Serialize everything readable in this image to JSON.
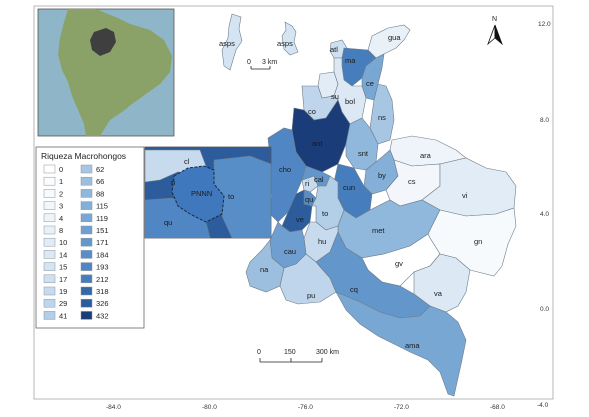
{
  "map": {
    "legend": {
      "title": "Riqueza Macrohongos",
      "items": [
        {
          "label": "0",
          "color": "#ffffff"
        },
        {
          "label": "1",
          "color": "#fbfcfe"
        },
        {
          "label": "2",
          "color": "#f7fafd"
        },
        {
          "label": "3",
          "color": "#f3f7fc"
        },
        {
          "label": "4",
          "color": "#eef4fa"
        },
        {
          "label": "8",
          "color": "#e8f0f8"
        },
        {
          "label": "10",
          "color": "#e2ecf6"
        },
        {
          "label": "14",
          "color": "#dce8f4"
        },
        {
          "label": "15",
          "color": "#d5e4f2"
        },
        {
          "label": "17",
          "color": "#cfe0f0"
        },
        {
          "label": "19",
          "color": "#c8dbee"
        },
        {
          "label": "29",
          "color": "#bed5eb"
        },
        {
          "label": "41",
          "color": "#b3cee7"
        },
        {
          "label": "62",
          "color": "#a7c6e3"
        },
        {
          "label": "66",
          "color": "#9cbfe0"
        },
        {
          "label": "88",
          "color": "#90b7dc"
        },
        {
          "label": "115",
          "color": "#84afd8"
        },
        {
          "label": "119",
          "color": "#79a7d4"
        },
        {
          "label": "151",
          "color": "#6e9fd0"
        },
        {
          "label": "171",
          "color": "#6397cc"
        },
        {
          "label": "184",
          "color": "#588ec8"
        },
        {
          "label": "193",
          "color": "#4f86c3"
        },
        {
          "label": "212",
          "color": "#467dbd"
        },
        {
          "label": "318",
          "color": "#3568a8"
        },
        {
          "label": "326",
          "color": "#2c5c9c"
        },
        {
          "label": "432",
          "color": "#1a3c78"
        }
      ]
    },
    "departments": [
      {
        "code": "asps",
        "richness": 15
      },
      {
        "code": "asps",
        "richness": 15
      },
      {
        "code": "gua",
        "richness": 8
      },
      {
        "code": "atl",
        "richness": 17
      },
      {
        "code": "ma",
        "richness": 212
      },
      {
        "code": "ce",
        "richness": 119
      },
      {
        "code": "su",
        "richness": 10
      },
      {
        "code": "bol",
        "richness": 14
      },
      {
        "code": "co",
        "richness": 29
      },
      {
        "code": "ns",
        "richness": 62
      },
      {
        "code": "ant",
        "richness": 432
      },
      {
        "code": "snt",
        "richness": 88
      },
      {
        "code": "ara",
        "richness": 4
      },
      {
        "code": "cho",
        "richness": 193
      },
      {
        "code": "by",
        "richness": 115
      },
      {
        "code": "cs",
        "richness": 3
      },
      {
        "code": "ri",
        "richness": 19
      },
      {
        "code": "cal",
        "richness": 171
      },
      {
        "code": "cun",
        "richness": 212
      },
      {
        "code": "qu",
        "richness": 184
      },
      {
        "code": "ve",
        "richness": 326
      },
      {
        "code": "to",
        "richness": 41
      },
      {
        "code": "vi",
        "richness": 10
      },
      {
        "code": "met",
        "richness": 88
      },
      {
        "code": "hu",
        "richness": 19
      },
      {
        "code": "gn",
        "richness": 2
      },
      {
        "code": "cau",
        "richness": 151
      },
      {
        "code": "na",
        "richness": 66
      },
      {
        "code": "gv",
        "richness": 0
      },
      {
        "code": "va",
        "richness": 14
      },
      {
        "code": "pu",
        "richness": 29
      },
      {
        "code": "cq",
        "richness": 171
      },
      {
        "code": "ama",
        "richness": 119
      }
    ],
    "inset_detail": {
      "labels": [
        "cl",
        "ri",
        "PNNN",
        "to",
        "qu"
      ],
      "highlight_label": "PNNN"
    },
    "scale_bar_main": {
      "ticks": [
        "0",
        "150",
        "300 km"
      ]
    },
    "scale_bar_island": {
      "ticks": [
        "0",
        "3 km"
      ]
    },
    "north_arrow": {
      "label": "N"
    },
    "axes": {
      "x_ticks": [
        "-84.0",
        "-80.0",
        "-76.0",
        "-72.0",
        "-68.0"
      ],
      "y_ticks": [
        "12.0",
        "8.0",
        "4.0",
        "0.0",
        "-4.0"
      ]
    },
    "colors": {
      "ocean": "#8fb6c8",
      "land_inset": "#8aa267",
      "colombia_inset": "#3f3f3f",
      "border": "#6f7d8a"
    }
  }
}
